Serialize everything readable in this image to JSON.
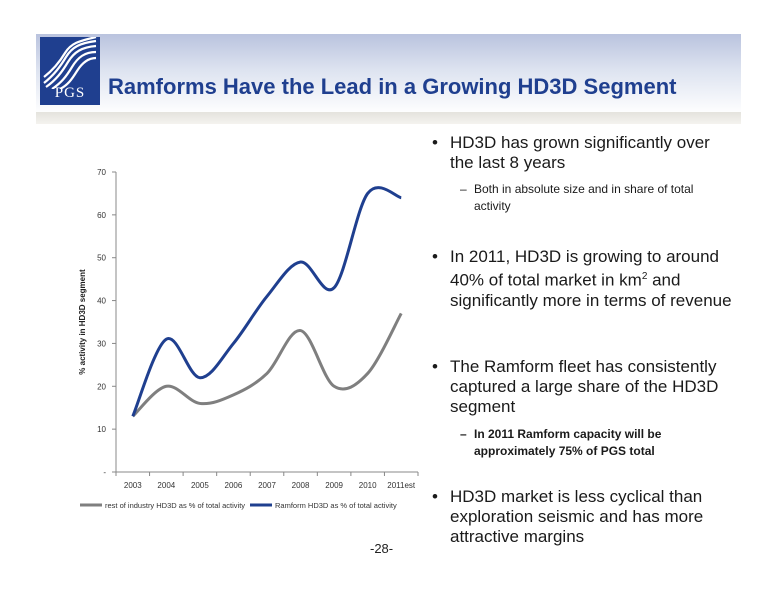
{
  "header": {
    "title": "Ramforms Have the Lead in a Growing HD3D Segment",
    "logo_text": "PGS"
  },
  "bullets": [
    {
      "text": "HD3D has grown significantly over the last 8 years",
      "sub": [
        "Both in absolute size and in share of total activity"
      ]
    },
    {
      "text_pre": "In 2011, HD3D  is growing to around 40% of total market in km",
      "sup": "2",
      "text_post": " and  significantly more in terms of revenue",
      "sub": []
    },
    {
      "text": "The Ramform fleet has consistently captured a large share of the HD3D segment",
      "sub": [
        "In 2011 Ramform capacity will be approximately 75% of PGS total"
      ]
    },
    {
      "text": "HD3D market is less cyclical than exploration seismic and has more attractive margins",
      "sub": []
    }
  ],
  "page_number": "-28-",
  "chart_data": {
    "type": "line",
    "categories": [
      "2003",
      "2004",
      "2005",
      "2006",
      "2007",
      "2008",
      "2009",
      "2010",
      "2011est"
    ],
    "ylabel": "% activity in HD3D segment",
    "ylim": [
      0,
      70
    ],
    "yticks": [
      "-",
      "10",
      "20",
      "30",
      "40",
      "50",
      "60",
      "70"
    ],
    "series": [
      {
        "name": "rest of industry HD3D as % of total activity",
        "color": "#7f7f7f",
        "values": [
          13,
          20,
          16,
          18,
          23,
          33,
          20,
          23,
          37
        ]
      },
      {
        "name": "Ramform HD3D as % of total activity",
        "color": "#1f3f8f",
        "values": [
          13,
          31,
          22,
          30,
          41,
          49,
          43,
          65,
          64
        ]
      }
    ],
    "grid": false,
    "legend": "bottom"
  }
}
